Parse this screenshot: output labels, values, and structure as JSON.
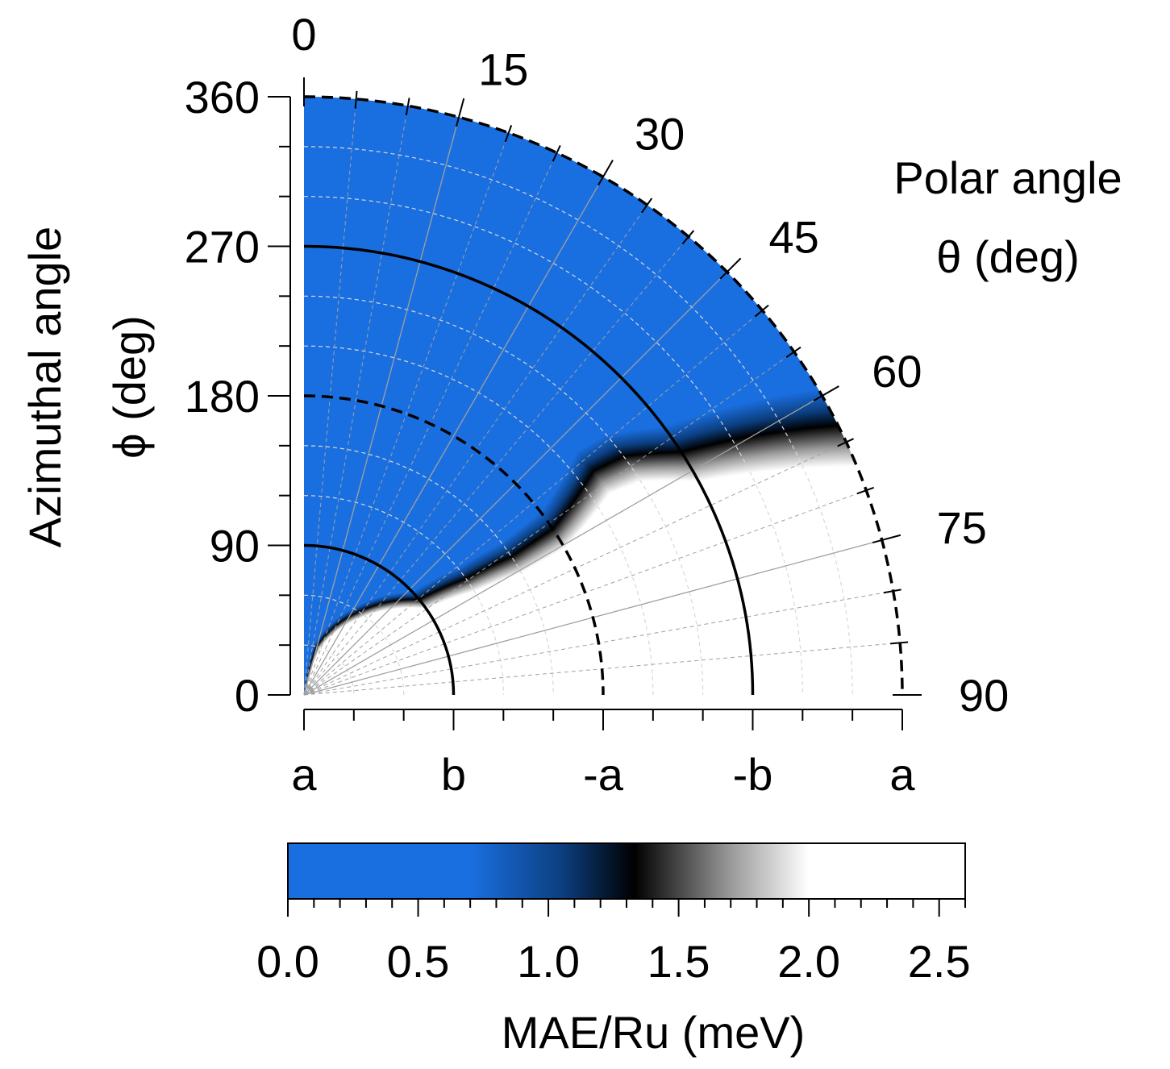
{
  "chart_data": {
    "type": "heatmap",
    "projection": "polar-quadrant",
    "ylabel_lines": [
      "Azimuthal angle",
      "ϕ (deg)"
    ],
    "theta_label_lines": [
      "Polar angle",
      "θ (deg)"
    ],
    "colorbar_label": "MAE/Ru (meV)",
    "phi_ticks": [
      "0",
      "90",
      "180",
      "270",
      "360"
    ],
    "theta_ticks": [
      "0",
      "15",
      "30",
      "45",
      "60",
      "75",
      "90"
    ],
    "direction_ticks": [
      "a",
      "b",
      "-a",
      "-b",
      "a"
    ],
    "colorbar_ticks": [
      "0.0",
      "0.5",
      "1.0",
      "1.5",
      "2.0",
      "2.5"
    ],
    "phi_range": [
      0,
      360
    ],
    "theta_range": [
      0,
      90
    ],
    "colorbar_range": [
      0,
      2.6
    ],
    "colorscale": [
      {
        "value": 0.0,
        "color": "#1a6fe0"
      },
      {
        "value": 0.7,
        "color": "#1a6fe0"
      },
      {
        "value": 1.05,
        "color": "#0c3f80"
      },
      {
        "value": 1.33,
        "color": "#000000"
      },
      {
        "value": 1.7,
        "color": "#9a9a9a"
      },
      {
        "value": 2.0,
        "color": "#ffffff"
      },
      {
        "value": 2.6,
        "color": "#ffffff"
      }
    ],
    "boundary_profile": [
      {
        "phi": 0,
        "theta": 6
      },
      {
        "phi": 30,
        "theta": 14
      },
      {
        "phi": 60,
        "theta": 33
      },
      {
        "phi": 90,
        "theta": 50
      },
      {
        "phi": 120,
        "theta": 54
      },
      {
        "phi": 150,
        "theta": 56
      },
      {
        "phi": 180,
        "theta": 56
      },
      {
        "phi": 200,
        "theta": 54
      },
      {
        "phi": 220,
        "theta": 52
      },
      {
        "phi": 240,
        "theta": 53
      },
      {
        "phi": 270,
        "theta": 57
      },
      {
        "phi": 300,
        "theta": 59
      },
      {
        "phi": 330,
        "theta": 61
      },
      {
        "phi": 360,
        "theta": 63
      }
    ],
    "transition_width_theta_deg": 12,
    "grid": true
  }
}
